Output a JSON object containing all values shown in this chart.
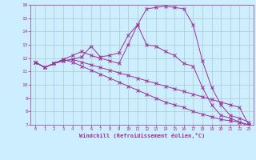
{
  "xlabel": "Windchill (Refroidissement éolien,°C)",
  "xlim": [
    -0.5,
    23.5
  ],
  "ylim": [
    7,
    16
  ],
  "xticks": [
    0,
    1,
    2,
    3,
    4,
    5,
    6,
    7,
    8,
    9,
    10,
    11,
    12,
    13,
    14,
    15,
    16,
    17,
    18,
    19,
    20,
    21,
    22,
    23
  ],
  "yticks": [
    7,
    8,
    9,
    10,
    11,
    12,
    13,
    14,
    15,
    16
  ],
  "bg_color": "#cceeff",
  "line_color": "#993399",
  "grid_color": "#aacccc",
  "curves": [
    [
      11.7,
      11.3,
      11.6,
      11.8,
      11.9,
      12.1,
      12.9,
      12.1,
      12.2,
      12.4,
      13.7,
      14.5,
      13.0,
      12.9,
      12.5,
      12.2,
      11.6,
      11.4,
      9.8,
      8.5,
      7.7,
      7.5,
      7.2,
      6.9
    ],
    [
      11.7,
      11.3,
      11.6,
      11.8,
      11.9,
      11.7,
      11.5,
      11.3,
      11.1,
      10.9,
      10.7,
      10.5,
      10.3,
      10.1,
      9.9,
      9.7,
      9.5,
      9.3,
      9.1,
      8.9,
      8.7,
      8.5,
      8.3,
      7.0
    ],
    [
      11.7,
      11.3,
      11.6,
      11.9,
      12.2,
      12.5,
      12.2,
      12.0,
      11.8,
      11.6,
      13.0,
      14.5,
      15.7,
      15.8,
      15.9,
      15.8,
      15.7,
      14.5,
      11.8,
      9.8,
      8.5,
      7.7,
      7.5,
      7.2
    ],
    [
      11.7,
      11.3,
      11.6,
      11.9,
      11.7,
      11.4,
      11.1,
      10.8,
      10.5,
      10.2,
      9.9,
      9.6,
      9.3,
      9.0,
      8.7,
      8.5,
      8.3,
      8.0,
      7.8,
      7.6,
      7.4,
      7.3,
      7.2,
      7.0
    ]
  ]
}
